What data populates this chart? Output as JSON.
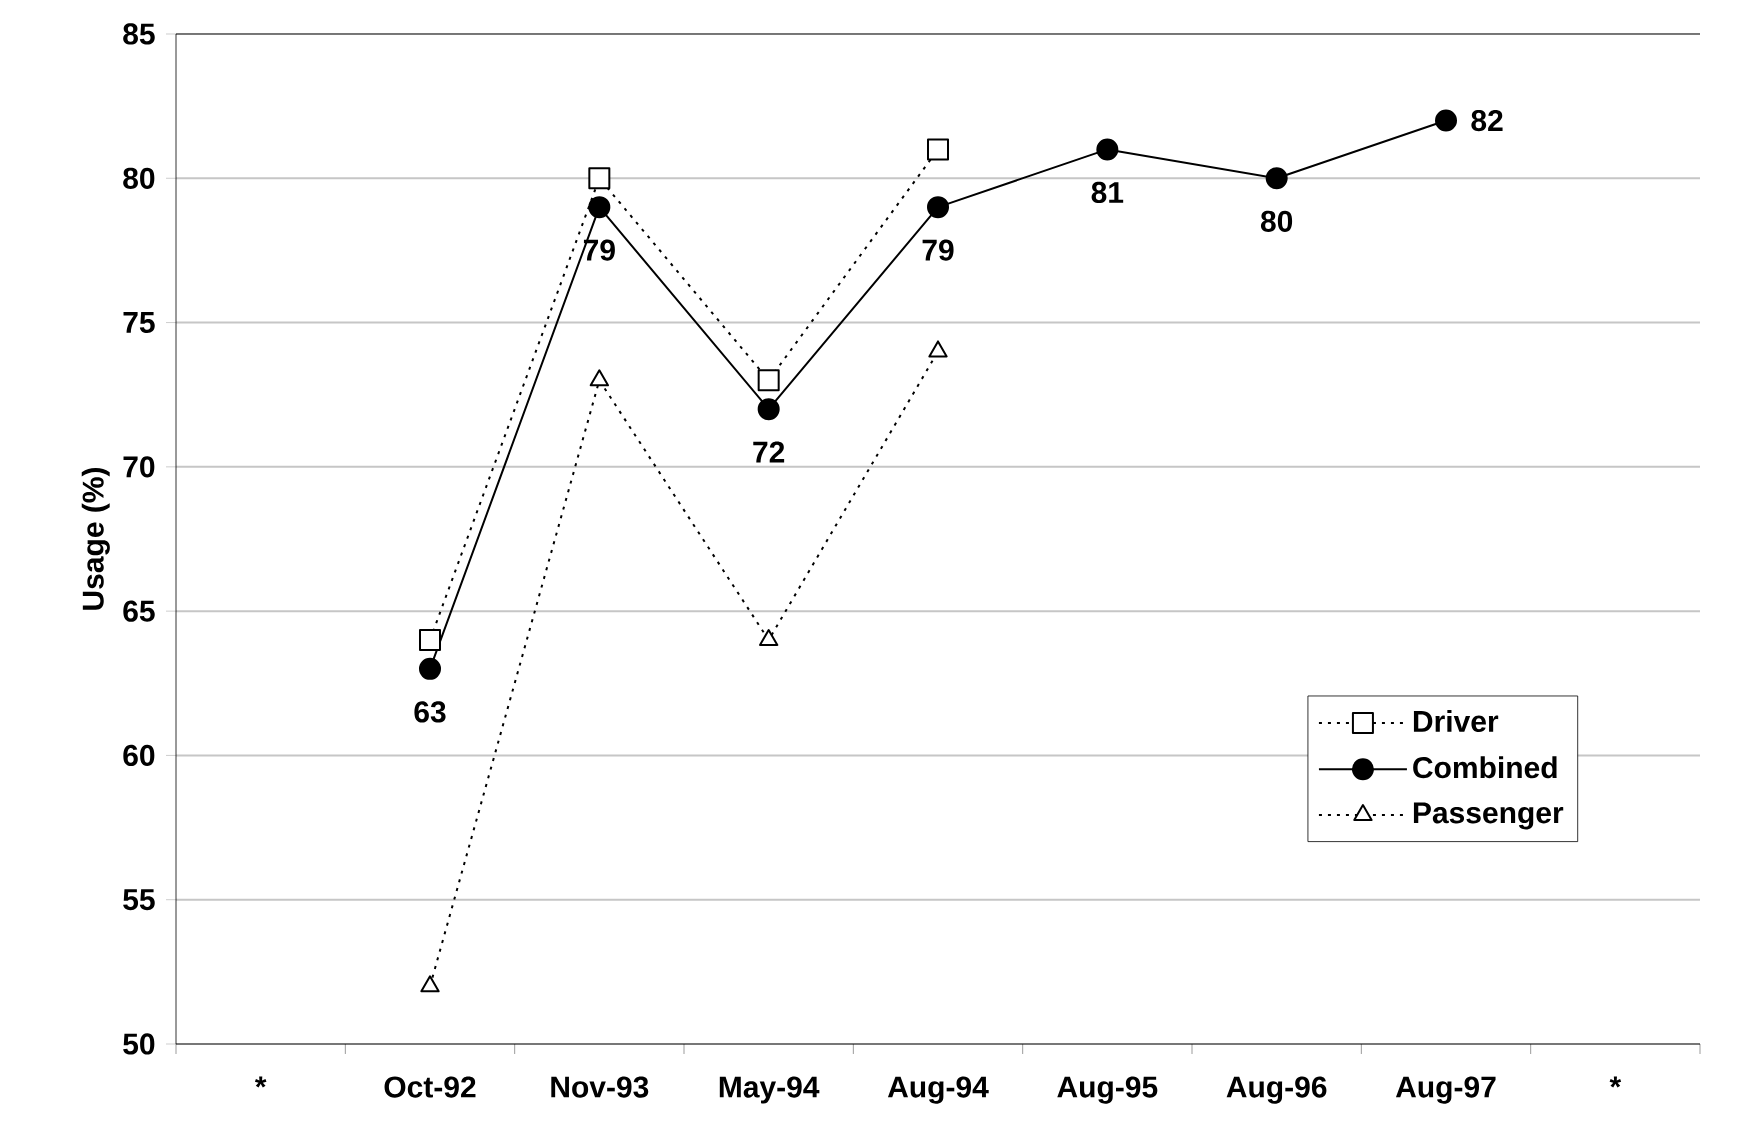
{
  "chart_data": {
    "type": "line",
    "ylabel": "Usage (%)",
    "categories": [
      "*",
      "Oct-92",
      "Nov-93",
      "May-94",
      "Aug-94",
      "Aug-95",
      "Aug-96",
      "Aug-97",
      "*"
    ],
    "ylim": [
      50,
      85
    ],
    "yticks": [
      50,
      55,
      60,
      65,
      70,
      75,
      80,
      85
    ],
    "grid": "y",
    "legend": "bottom right",
    "series": [
      {
        "name": "Driver",
        "color": "#000000",
        "marker": "square",
        "line_style": "dotted",
        "values": [
          null,
          64,
          80,
          73,
          81,
          null,
          null,
          null,
          null
        ]
      },
      {
        "name": "Combined",
        "color": "#000000",
        "marker": "circle",
        "line_style": "solid",
        "values": [
          null,
          63,
          79,
          72,
          79,
          81,
          80,
          82,
          null
        ],
        "value_labels": [
          null,
          "63",
          "79",
          "72",
          "79",
          "81",
          "80",
          "82",
          null
        ]
      },
      {
        "name": "Passenger",
        "color": "#000000",
        "marker": "triangle",
        "line_style": "dotted",
        "values": [
          null,
          52,
          73,
          64,
          74,
          null,
          null,
          null,
          null
        ]
      }
    ]
  }
}
